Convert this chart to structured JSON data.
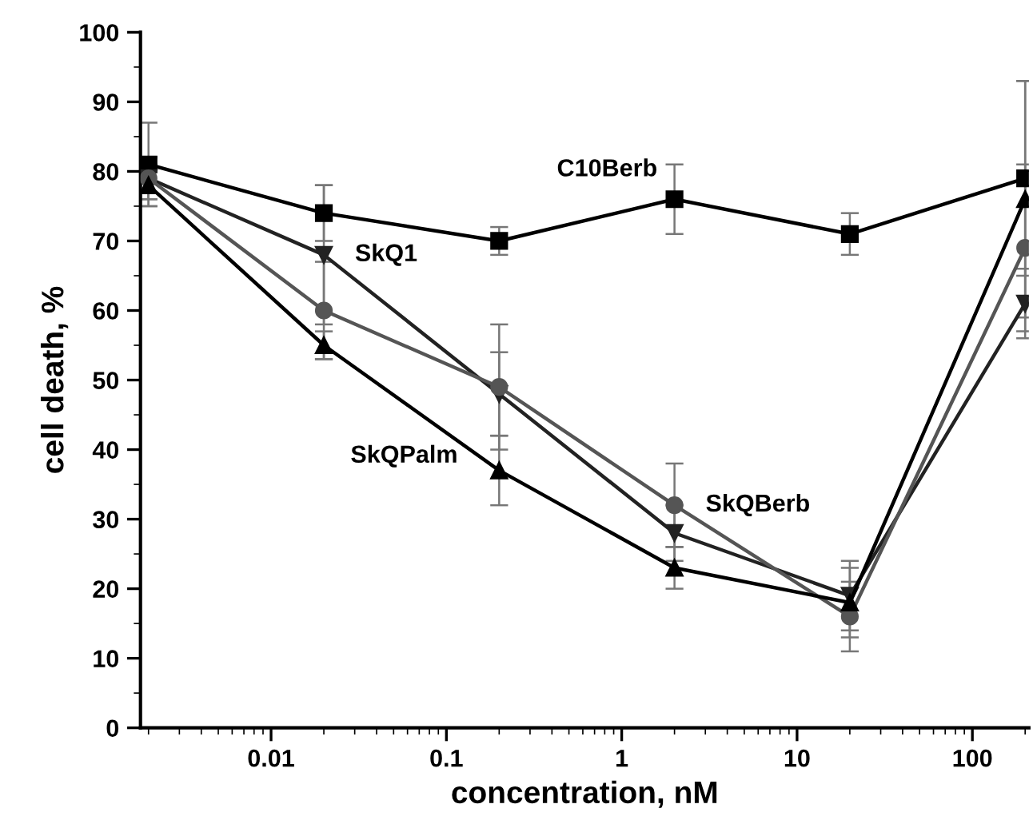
{
  "chart_data": {
    "type": "line",
    "xlabel": "concentration, nM",
    "ylabel": "cell death, %",
    "x": [
      0.002,
      0.02,
      0.2,
      2,
      20,
      200
    ],
    "series": [
      {
        "name": "C10Berb",
        "color": "#000000",
        "marker": "square",
        "values": [
          81,
          74,
          70,
          76,
          71,
          79
        ],
        "errors": [
          6,
          4,
          2,
          5,
          3,
          14
        ]
      },
      {
        "name": "SkQ1",
        "color": "#222222",
        "marker": "triangle_down",
        "values": [
          79,
          68,
          48,
          28,
          19,
          61
        ],
        "errors": [
          3,
          10,
          6,
          4,
          5,
          5
        ]
      },
      {
        "name": "SkQBerb",
        "color": "#555555",
        "marker": "circle",
        "values": [
          79,
          60,
          49,
          32,
          16,
          69
        ],
        "errors": [
          3,
          7,
          9,
          6,
          5,
          12
        ]
      },
      {
        "name": "SkQPalm",
        "color": "#000000",
        "marker": "triangle",
        "values": [
          78,
          55,
          37,
          23,
          18,
          76
        ],
        "errors": [
          3,
          2,
          5,
          3,
          5,
          17
        ]
      }
    ],
    "log": "x",
    "xlim": [
      0.0018,
      210
    ],
    "ylim": [
      0,
      100
    ],
    "xticks": [
      0.01,
      0.1,
      1,
      10,
      100
    ],
    "yticks": [
      0,
      10,
      20,
      30,
      40,
      50,
      60,
      70,
      80,
      90,
      100
    ],
    "grid": false,
    "legend": false
  }
}
